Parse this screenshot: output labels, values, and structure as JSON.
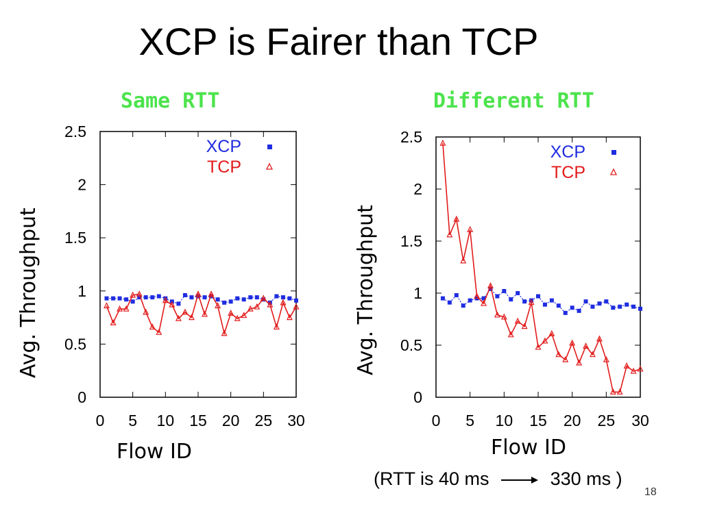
{
  "slide": {
    "title": "XCP is Fairer than TCP",
    "rtt_note_left": "(RTT is 40 ms",
    "rtt_note_right": "330 ms )",
    "page_number": "18"
  },
  "colors": {
    "xcp": "#1f2de0",
    "tcp": "#e21b1b",
    "panel_title": "#4ce34c"
  },
  "chart_data": [
    {
      "type": "line",
      "title": "Same RTT",
      "xlabel": "Flow ID",
      "ylabel": "Avg. Throughput",
      "xlim": [
        0,
        30
      ],
      "ylim": [
        0,
        2.5
      ],
      "xticks": [
        0,
        5,
        10,
        15,
        20,
        25,
        30
      ],
      "yticks": [
        0,
        0.5,
        1,
        1.5,
        2,
        2.5
      ],
      "grid": false,
      "legend_position": "top-right",
      "x": [
        1,
        2,
        3,
        4,
        5,
        6,
        7,
        8,
        9,
        10,
        11,
        12,
        13,
        14,
        15,
        16,
        17,
        18,
        19,
        20,
        21,
        22,
        23,
        24,
        25,
        26,
        27,
        28,
        29,
        30
      ],
      "series": [
        {
          "name": "XCP",
          "marker": "square",
          "line": "dotted",
          "values": [
            0.93,
            0.93,
            0.93,
            0.92,
            0.9,
            0.94,
            0.94,
            0.94,
            0.95,
            0.93,
            0.9,
            0.88,
            0.96,
            0.94,
            0.95,
            0.94,
            0.95,
            0.92,
            0.89,
            0.9,
            0.93,
            0.92,
            0.94,
            0.94,
            0.92,
            0.89,
            0.95,
            0.94,
            0.93,
            0.91
          ]
        },
        {
          "name": "TCP",
          "marker": "triangle",
          "line": "solid",
          "values": [
            0.86,
            0.7,
            0.83,
            0.83,
            0.96,
            0.97,
            0.8,
            0.66,
            0.61,
            0.91,
            0.87,
            0.74,
            0.8,
            0.75,
            0.97,
            0.78,
            0.97,
            0.86,
            0.6,
            0.79,
            0.74,
            0.77,
            0.83,
            0.85,
            0.93,
            0.87,
            0.66,
            0.89,
            0.75,
            0.85
          ]
        }
      ]
    },
    {
      "type": "line",
      "title": "Different RTT",
      "xlabel": "Flow ID",
      "ylabel": "Avg. Throughput",
      "xlim": [
        0,
        30
      ],
      "ylim": [
        0,
        2.5
      ],
      "xticks": [
        0,
        5,
        10,
        15,
        20,
        25,
        30
      ],
      "yticks": [
        0,
        0.5,
        1,
        1.5,
        2,
        2.5
      ],
      "grid": false,
      "legend_position": "top-right",
      "x": [
        1,
        2,
        3,
        4,
        5,
        6,
        7,
        8,
        9,
        10,
        11,
        12,
        13,
        14,
        15,
        16,
        17,
        18,
        19,
        20,
        21,
        22,
        23,
        24,
        25,
        26,
        27,
        28,
        29,
        30
      ],
      "series": [
        {
          "name": "XCP",
          "marker": "square",
          "line": "dotted",
          "values": [
            0.95,
            0.91,
            0.98,
            0.88,
            0.93,
            0.95,
            0.95,
            1.04,
            0.97,
            1.02,
            0.94,
            1.0,
            0.92,
            0.93,
            0.97,
            0.89,
            0.93,
            0.88,
            0.81,
            0.86,
            0.83,
            0.92,
            0.87,
            0.9,
            0.92,
            0.86,
            0.87,
            0.89,
            0.87,
            0.85
          ]
        },
        {
          "name": "TCP",
          "marker": "triangle",
          "line": "solid",
          "values": [
            2.44,
            1.56,
            1.71,
            1.31,
            1.61,
            0.97,
            0.9,
            1.07,
            0.79,
            0.77,
            0.6,
            0.73,
            0.68,
            0.91,
            0.48,
            0.54,
            0.61,
            0.41,
            0.36,
            0.52,
            0.33,
            0.49,
            0.41,
            0.56,
            0.36,
            0.05,
            0.05,
            0.3,
            0.25,
            0.27
          ]
        }
      ]
    }
  ]
}
